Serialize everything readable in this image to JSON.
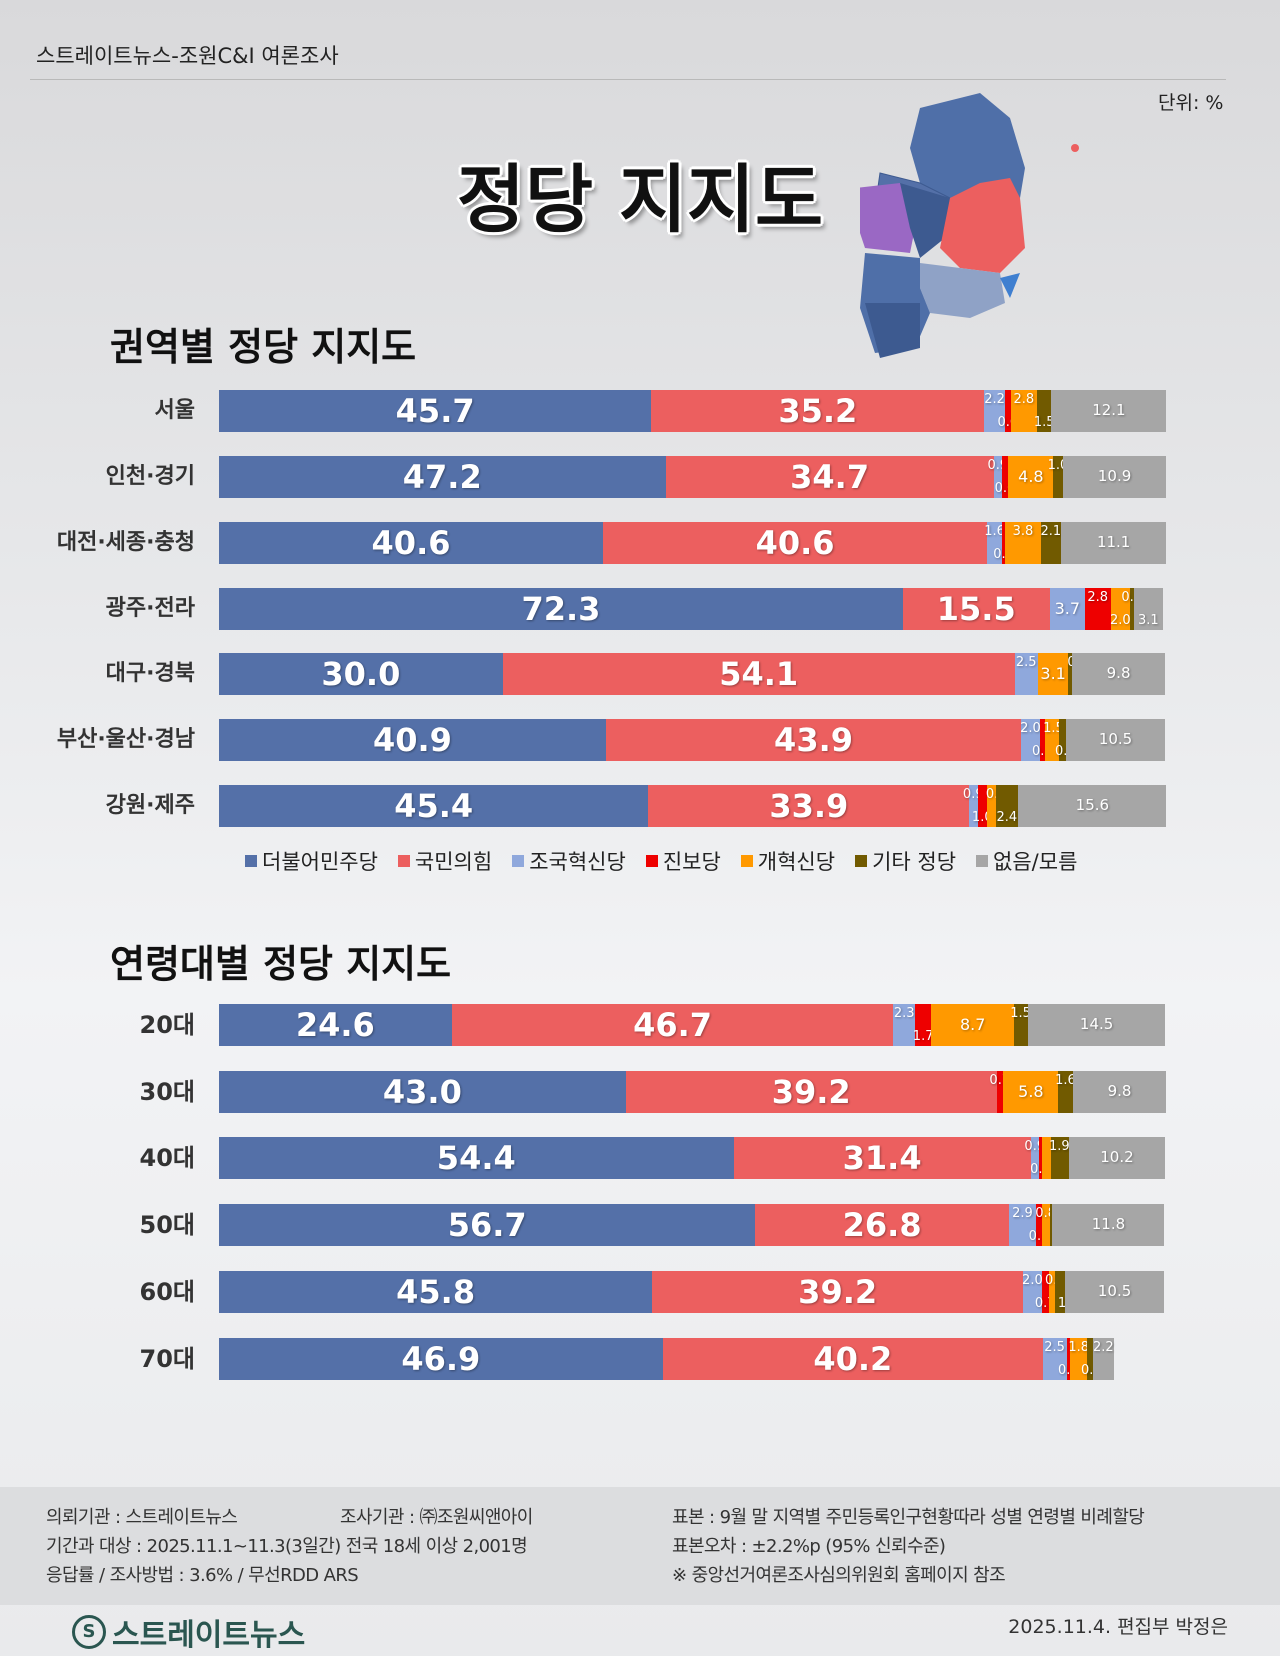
{
  "header": {
    "source": "스트레이트뉴스-조원C&I 여론조사",
    "unit": "단위: %",
    "title": "정당 지지도"
  },
  "legend": [
    {
      "name": "더불어민주당",
      "color": "#5470a8"
    },
    {
      "name": "국민의힘",
      "color": "#ec5f5f"
    },
    {
      "name": "조국혁신당",
      "color": "#8fa8dc"
    },
    {
      "name": "진보당",
      "color": "#ee0000"
    },
    {
      "name": "개혁신당",
      "color": "#ff9900"
    },
    {
      "name": "기타 정당",
      "color": "#715a00"
    },
    {
      "name": "없음/모름",
      "color": "#a6a6a6"
    }
  ],
  "chart_data": [
    {
      "type": "bar",
      "orientation": "horizontal",
      "stacked": true,
      "title": "권역별 정당 지지도",
      "categories": [
        "서울",
        "인천·경기",
        "대전·세종·충청",
        "광주·전라",
        "대구·경북",
        "부산·울산·경남",
        "강원·제주"
      ],
      "series": [
        {
          "name": "더불어민주당",
          "values": [
            45.7,
            47.2,
            40.6,
            72.3,
            30.0,
            40.9,
            45.4
          ]
        },
        {
          "name": "국민의힘",
          "values": [
            35.2,
            34.7,
            40.6,
            15.5,
            54.1,
            43.9,
            33.9
          ]
        },
        {
          "name": "조국혁신당",
          "values": [
            2.2,
            0.9,
            1.6,
            3.7,
            2.5,
            2.0,
            0.9
          ]
        },
        {
          "name": "진보당",
          "values": [
            0.6,
            0.6,
            0.3,
            2.8,
            null,
            0.5,
            1.0
          ]
        },
        {
          "name": "개혁신당",
          "values": [
            2.8,
            4.8,
            3.8,
            2.0,
            3.1,
            1.5,
            0.9
          ]
        },
        {
          "name": "기타 정당",
          "values": [
            1.5,
            1.0,
            2.1,
            0.4,
            0.5,
            0.7,
            2.4
          ]
        },
        {
          "name": "없음/모름",
          "values": [
            12.1,
            10.9,
            11.1,
            3.1,
            9.8,
            10.5,
            15.6
          ]
        }
      ]
    },
    {
      "type": "bar",
      "orientation": "horizontal",
      "stacked": true,
      "title": "연령대별 정당 지지도",
      "categories": [
        "20대",
        "30대",
        "40대",
        "50대",
        "60대",
        "70대"
      ],
      "series": [
        {
          "name": "더불어민주당",
          "values": [
            24.6,
            43.0,
            54.4,
            56.7,
            45.8,
            46.9
          ]
        },
        {
          "name": "국민의힘",
          "values": [
            46.7,
            39.2,
            31.4,
            26.8,
            39.2,
            40.2
          ]
        },
        {
          "name": "조국혁신당",
          "values": [
            2.3,
            null,
            0.9,
            2.9,
            2.0,
            2.5
          ]
        },
        {
          "name": "진보당",
          "values": [
            1.7,
            0.7,
            0.3,
            0.6,
            0.7,
            0.4
          ]
        },
        {
          "name": "개혁신당",
          "values": [
            8.7,
            5.8,
            null,
            0.8,
            0.7,
            1.8
          ]
        },
        {
          "name": "기타 정당",
          "values": [
            1.5,
            1.6,
            1.9,
            0.3,
            1.0,
            0.6
          ]
        },
        {
          "name": "없음/모름",
          "values": [
            14.5,
            9.8,
            10.2,
            11.8,
            10.5,
            2.2
          ]
        }
      ]
    }
  ],
  "footer": {
    "client": "의뢰기관 : 스트레이트뉴스",
    "agency": "조사기관 : ㈜조원씨앤아이",
    "period": "기간과 대상 : 2025.11.1~11.3(3일간)   전국 18세 이상  2,001명",
    "method": "응답률 / 조사방법 : 3.6% / 무선RDD ARS",
    "sample": "표본 : 9월 말 지역별 주민등록인구현황따라 성별 연령별 비례할당",
    "error": "표본오차 : ±2.2%p (95% 신뢰수준)",
    "note": "※ 중앙선거여론조사심의위원회 홈페이지 참조",
    "logo": "스트레이트뉴스",
    "date": "2025.11.4. 편집부 박정은"
  }
}
